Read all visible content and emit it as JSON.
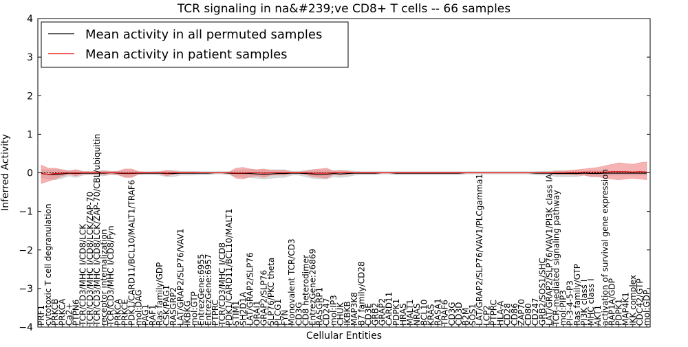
{
  "chart_data": {
    "type": "line",
    "title": "TCR signaling in na&#239;ve CD8+ T cells -- 66 samples",
    "xlabel": "Cellular Entities",
    "ylabel": "Inferred Activity",
    "ylim": [
      -4,
      4
    ],
    "yticks": [
      "4",
      "3",
      "2",
      "1",
      "0",
      "−1",
      "−2",
      "−3",
      "−4"
    ],
    "grid": false,
    "legend_position": "top-left",
    "colors": {
      "permuted_line": "#000000",
      "permuted_band": "#bbbbbb",
      "patient_line": "#e00000",
      "patient_band": "#f08080"
    },
    "categories": [
      "PRF1",
      "cytotoxic T cell degranulation",
      "PRKCB",
      "PRKCA",
      "Ca2+",
      "PTPN6",
      "TCR/CD3/MHC I/CD8/LCK",
      "TCR/CD3/MHC I/CD8/LCK/ZAP-70",
      "TCR/CD3/MHC I/CD8/LCK/ZAP-70/CBL/ubiquitin",
      "receptor internalization",
      "TCR/CD3/MHC I/CD8/Fyn",
      "PRKCA",
      "PRKCE",
      "PDK1/CARD11/BCL10/MALT1/TRAF6",
      "mol:DAG",
      "PAG1",
      "RAF1",
      "Ras family/GDP",
      "CSK/PAG1",
      "RASGRP2",
      "LAT/GRAP2/SLP76/VAV1",
      "IKBKG",
      "mol:GTP",
      "EntrezGene:6955",
      "EntrezGene:6957",
      "PTPRC",
      "TCR/CD3/MHC I/CD8",
      "PDK1/CARD11/BCL10/MALT1",
      "STIM1",
      "SH2D1A",
      "LAT/GRAP2/SLP76",
      "ORAI1",
      "GRAP2/SLP76",
      "SLP76/PKC theta",
      "PLCG1",
      "FYN",
      "Monovalent TCR/CD3",
      "CD3G",
      "CD8 heterodimer",
      "EntrezGene:26869",
      "RASGRP1",
      "CD247",
      "mol:IP3",
      "CHUK",
      "IKBKB",
      "MAP3K8",
      "B7 family/CD28",
      "CD3E",
      "GRB2",
      "GRAP2",
      "CARD11",
      "PDPK1",
      "HRAS",
      "MALT1",
      "NRAS",
      "BCL10",
      "KRAS",
      "RASA1",
      "TRAF6",
      "CD3G",
      "CD3D",
      "B2M",
      "SOS1",
      "LAT/GRAP2/SLP76/VAV1/PLCgamma1",
      "LCP2",
      "PTPRC",
      "HLA-A",
      "CD28",
      "CD86",
      "ZAP70",
      "CD80",
      "CD247",
      "GRB2/SOS1/SHC",
      "LAT/GRAP2/SLP76/VAV1/PI3K class IA",
      "TCR-mediated signaling pathway",
      "mol:PIP3",
      "PI-3-4-5-P3",
      "Ras family/GTP",
      "PI3K class I",
      "MHC class I",
      "AKT1",
      "activation of survival gene expression",
      "RAP1A/GDP",
      "PDPK1",
      "MAP4K1",
      "IKK complex",
      "CDC42/GTP",
      "mol:GDP"
    ],
    "series": [
      {
        "name": "Mean activity in all permuted samples",
        "mean": [
          -0.02,
          -0.04,
          -0.05,
          -0.03,
          -0.01,
          -0.02,
          -0.01,
          -0.01,
          -0.01,
          -0.01,
          0,
          -0.01,
          -0.02,
          -0.02,
          -0.01,
          -0.01,
          -0.01,
          -0.01,
          -0.02,
          -0.02,
          -0.01,
          -0.01,
          -0.01,
          -0.01,
          -0.01,
          0,
          0,
          -0.01,
          -0.02,
          -0.02,
          -0.02,
          -0.03,
          -0.04,
          -0.03,
          -0.02,
          -0.02,
          -0.01,
          -0.01,
          -0.02,
          -0.03,
          -0.05,
          -0.04,
          -0.02,
          -0.03,
          -0.02,
          -0.01,
          -0.01,
          -0.01,
          -0.01,
          0,
          0,
          -0.01,
          -0.01,
          -0.01,
          -0.01,
          -0.01,
          -0.01,
          -0.01,
          -0.01,
          -0.01,
          -0.01,
          0,
          0,
          0,
          0,
          0,
          0,
          0,
          0,
          0,
          0,
          -0.01,
          -0.01,
          -0.01,
          -0.02,
          -0.02,
          -0.02,
          -0.02,
          -0.01,
          -0.02,
          -0.02,
          -0.01,
          -0.01,
          -0.01,
          -0.01,
          -0.01,
          -0.01,
          -0.01
        ],
        "lower": [
          -0.12,
          -0.16,
          -0.18,
          -0.14,
          -0.08,
          -0.12,
          -0.06,
          -0.05,
          -0.06,
          -0.08,
          -0.04,
          -0.06,
          -0.1,
          -0.1,
          -0.05,
          -0.05,
          -0.05,
          -0.06,
          -0.1,
          -0.1,
          -0.06,
          -0.06,
          -0.06,
          -0.05,
          -0.05,
          -0.03,
          -0.03,
          -0.05,
          -0.1,
          -0.12,
          -0.12,
          -0.14,
          -0.16,
          -0.14,
          -0.12,
          -0.12,
          -0.06,
          -0.06,
          -0.1,
          -0.14,
          -0.16,
          -0.16,
          -0.1,
          -0.12,
          -0.1,
          -0.06,
          -0.05,
          -0.05,
          -0.05,
          -0.03,
          -0.03,
          -0.05,
          -0.05,
          -0.05,
          -0.05,
          -0.05,
          -0.05,
          -0.05,
          -0.05,
          -0.05,
          -0.05,
          -0.03,
          -0.03,
          -0.03,
          -0.03,
          -0.03,
          -0.03,
          -0.03,
          -0.03,
          -0.03,
          -0.03,
          -0.05,
          -0.06,
          -0.06,
          -0.1,
          -0.1,
          -0.1,
          -0.1,
          -0.06,
          -0.1,
          -0.1,
          -0.06,
          -0.06,
          -0.06,
          -0.06,
          -0.06,
          -0.06,
          -0.06
        ],
        "upper": [
          0.08,
          0.08,
          0.08,
          0.08,
          0.06,
          0.08,
          0.04,
          0.03,
          0.04,
          0.06,
          0.04,
          0.04,
          0.06,
          0.06,
          0.03,
          0.03,
          0.03,
          0.04,
          0.06,
          0.06,
          0.04,
          0.04,
          0.04,
          0.03,
          0.03,
          0.03,
          0.03,
          0.03,
          0.06,
          0.08,
          0.08,
          0.08,
          0.08,
          0.08,
          0.08,
          0.08,
          0.04,
          0.04,
          0.06,
          0.08,
          0.06,
          0.08,
          0.06,
          0.06,
          0.06,
          0.04,
          0.03,
          0.03,
          0.03,
          0.03,
          0.03,
          0.03,
          0.03,
          0.03,
          0.03,
          0.03,
          0.03,
          0.03,
          0.03,
          0.03,
          0.03,
          0.03,
          0.03,
          0.03,
          0.03,
          0.03,
          0.03,
          0.03,
          0.03,
          0.03,
          0.03,
          0.03,
          0.04,
          0.04,
          0.06,
          0.06,
          0.06,
          0.06,
          0.04,
          0.06,
          0.06,
          0.04,
          0.04,
          0.04,
          0.04,
          0.04,
          0.04,
          0.04
        ]
      },
      {
        "name": "Mean activity in patient samples",
        "mean": [
          -0.02,
          -0.04,
          -0.02,
          -0.01,
          0,
          -0.01,
          0,
          0,
          0,
          0,
          0,
          0,
          -0.01,
          -0.01,
          0,
          0,
          0,
          0,
          -0.01,
          0,
          0,
          0,
          0,
          0,
          0,
          0,
          0,
          0,
          -0.01,
          -0.01,
          0,
          0,
          -0.01,
          0,
          0,
          0,
          0,
          0,
          0,
          -0.01,
          -0.01,
          -0.01,
          0,
          0,
          0,
          0,
          0,
          0,
          0,
          0,
          0,
          0,
          0,
          0,
          0,
          0,
          0,
          0,
          0,
          0,
          0,
          0,
          0,
          0,
          0,
          0,
          0,
          0,
          0,
          0,
          0,
          0,
          0,
          0,
          0,
          0,
          0.01,
          0.01,
          0.02,
          0.02,
          0.02,
          0.02,
          0.03,
          0.03,
          0.03,
          0.02,
          0.03,
          0.02
        ],
        "lower": [
          -0.28,
          -0.22,
          -0.16,
          -0.08,
          -0.04,
          -0.08,
          -0.03,
          -0.03,
          -0.03,
          -0.04,
          -0.03,
          -0.04,
          -0.12,
          -0.12,
          -0.03,
          -0.02,
          -0.02,
          -0.02,
          -0.08,
          -0.04,
          -0.02,
          -0.02,
          -0.02,
          -0.01,
          -0.01,
          -0.01,
          -0.01,
          -0.02,
          -0.14,
          -0.16,
          -0.1,
          -0.08,
          -0.12,
          -0.06,
          -0.06,
          -0.06,
          -0.02,
          -0.02,
          -0.04,
          -0.1,
          -0.12,
          -0.14,
          -0.04,
          -0.06,
          -0.04,
          -0.02,
          -0.02,
          -0.02,
          -0.02,
          -0.01,
          -0.01,
          -0.02,
          -0.02,
          -0.02,
          -0.02,
          -0.02,
          -0.02,
          -0.02,
          -0.02,
          -0.02,
          -0.02,
          -0.01,
          -0.01,
          -0.01,
          -0.01,
          -0.01,
          -0.01,
          -0.01,
          -0.01,
          -0.01,
          -0.01,
          -0.01,
          -0.02,
          -0.02,
          -0.04,
          -0.04,
          -0.04,
          -0.06,
          -0.06,
          -0.1,
          -0.1,
          -0.14,
          -0.16,
          -0.18,
          -0.16,
          -0.14,
          -0.16,
          -0.18
        ],
        "upper": [
          0.2,
          0.12,
          0.12,
          0.08,
          0.04,
          0.08,
          0.03,
          0.03,
          0.03,
          0.04,
          0.03,
          0.04,
          0.1,
          0.1,
          0.03,
          0.02,
          0.02,
          0.02,
          0.06,
          0.04,
          0.02,
          0.02,
          0.02,
          0.01,
          0.01,
          0.01,
          0.01,
          0.02,
          0.12,
          0.14,
          0.1,
          0.08,
          0.1,
          0.06,
          0.06,
          0.06,
          0.02,
          0.02,
          0.04,
          0.08,
          0.1,
          0.12,
          0.04,
          0.06,
          0.04,
          0.02,
          0.02,
          0.02,
          0.02,
          0.01,
          0.01,
          0.02,
          0.02,
          0.02,
          0.02,
          0.02,
          0.02,
          0.02,
          0.02,
          0.02,
          0.02,
          0.01,
          0.01,
          0.01,
          0.01,
          0.01,
          0.01,
          0.01,
          0.01,
          0.01,
          0.01,
          0.01,
          0.02,
          0.02,
          0.04,
          0.04,
          0.06,
          0.08,
          0.1,
          0.12,
          0.14,
          0.18,
          0.22,
          0.26,
          0.24,
          0.22,
          0.26,
          0.28
        ]
      }
    ]
  }
}
